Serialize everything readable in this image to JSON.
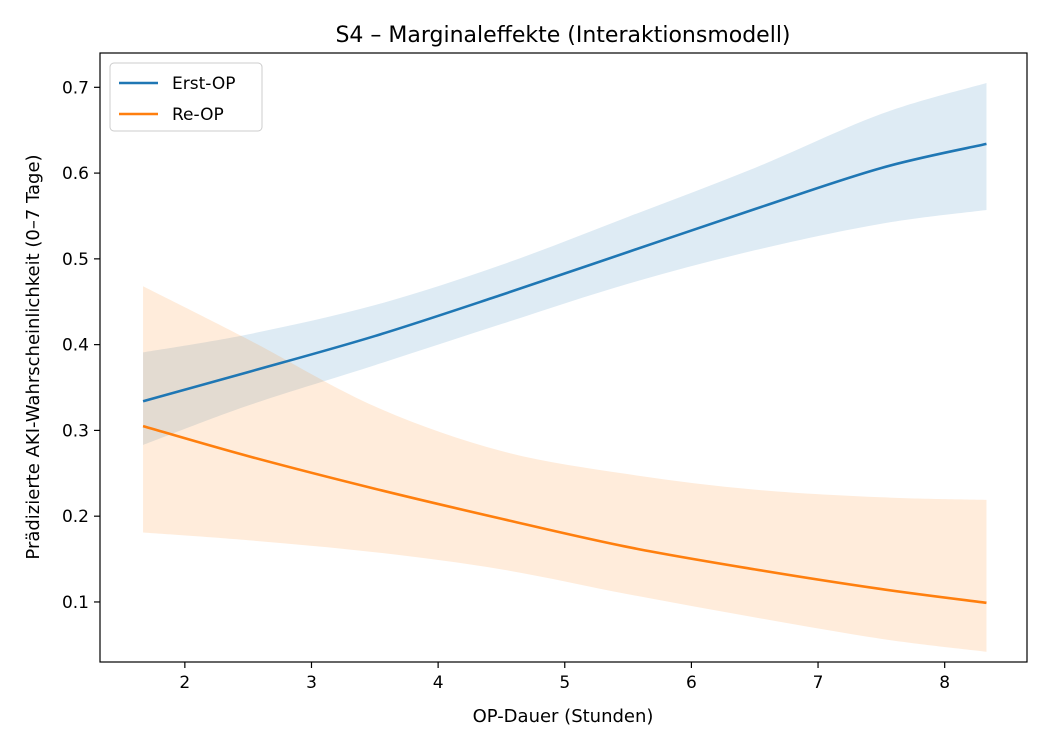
{
  "chart_data": {
    "type": "line",
    "title": "S4 – Marginaleffekte (Interaktionsmodell)",
    "xlabel": "OP-Dauer (Stunden)",
    "ylabel": "Prädizierte AKI-Wahrscheinlichkeit (0–7 Tage)",
    "xlim": [
      1.33,
      8.65
    ],
    "ylim": [
      0.03,
      0.74
    ],
    "xticks": [
      2,
      3,
      4,
      5,
      6,
      7,
      8
    ],
    "yticks": [
      0.1,
      0.2,
      0.3,
      0.4,
      0.5,
      0.6,
      0.7
    ],
    "xtick_labels": [
      "2",
      "3",
      "4",
      "5",
      "6",
      "7",
      "8"
    ],
    "ytick_labels": [
      "0.1",
      "0.2",
      "0.3",
      "0.4",
      "0.5",
      "0.6",
      "0.7"
    ],
    "grid": false,
    "legend": "top-left",
    "x": [
      1.67,
      2.5,
      3.5,
      4.5,
      5.5,
      6.5,
      7.5,
      8.33
    ],
    "series": [
      {
        "name": "Erst-OP",
        "color": "#1f77b4",
        "band_color": "#1f77b4",
        "values": [
          0.334,
          0.368,
          0.41,
          0.458,
          0.508,
          0.558,
          0.606,
          0.634
        ],
        "lower": [
          0.283,
          0.329,
          0.376,
          0.424,
          0.471,
          0.51,
          0.541,
          0.557
        ],
        "upper": [
          0.391,
          0.412,
          0.446,
          0.493,
          0.549,
          0.606,
          0.669,
          0.705
        ]
      },
      {
        "name": "Re-OP",
        "color": "#ff7f0e",
        "band_color": "#ff7f0e",
        "values": [
          0.305,
          0.27,
          0.232,
          0.197,
          0.164,
          0.138,
          0.115,
          0.099
        ],
        "lower": [
          0.181,
          0.172,
          0.158,
          0.138,
          0.109,
          0.082,
          0.057,
          0.042
        ],
        "upper": [
          0.468,
          0.406,
          0.328,
          0.276,
          0.249,
          0.231,
          0.222,
          0.219
        ]
      }
    ]
  }
}
